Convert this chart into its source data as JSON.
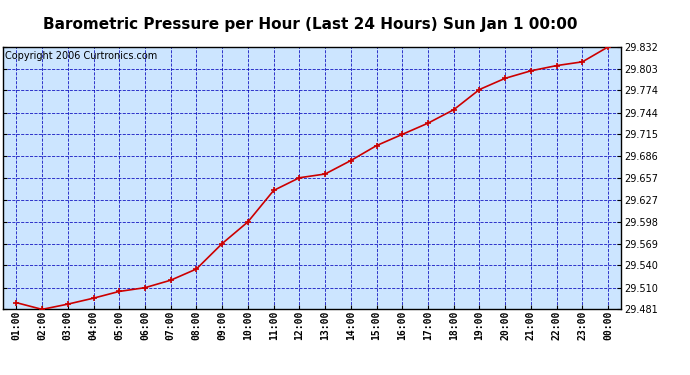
{
  "title": "Barometric Pressure per Hour (Last 24 Hours) Sun Jan 1 00:00",
  "copyright": "Copyright 2006 Curtronics.com",
  "x_labels": [
    "01:00",
    "02:00",
    "03:00",
    "04:00",
    "05:00",
    "06:00",
    "07:00",
    "08:00",
    "09:00",
    "10:00",
    "11:00",
    "12:00",
    "13:00",
    "14:00",
    "15:00",
    "16:00",
    "17:00",
    "18:00",
    "19:00",
    "20:00",
    "21:00",
    "22:00",
    "23:00",
    "00:00"
  ],
  "y_values": [
    29.49,
    29.481,
    29.488,
    29.496,
    29.505,
    29.51,
    29.52,
    29.535,
    29.569,
    29.598,
    29.64,
    29.657,
    29.662,
    29.68,
    29.7,
    29.715,
    29.73,
    29.748,
    29.775,
    29.79,
    29.8,
    29.807,
    29.812,
    29.832
  ],
  "y_ticks": [
    29.481,
    29.51,
    29.54,
    29.569,
    29.598,
    29.627,
    29.657,
    29.686,
    29.715,
    29.744,
    29.774,
    29.803,
    29.832
  ],
  "y_min": 29.481,
  "y_max": 29.832,
  "line_color": "#cc0000",
  "marker_color": "#cc0000",
  "bg_color": "#cce5ff",
  "grid_color": "#0000bb",
  "title_fontsize": 11,
  "tick_fontsize": 7,
  "copyright_fontsize": 7
}
